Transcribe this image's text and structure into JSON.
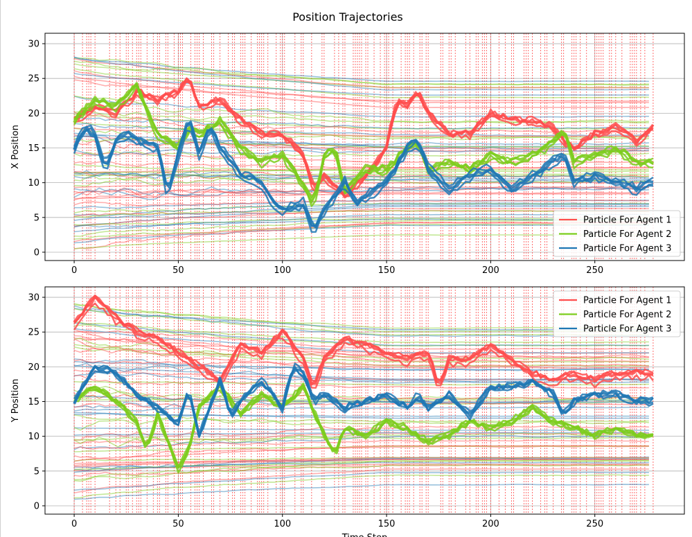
{
  "figure": {
    "title": "Position Trajectories"
  },
  "colors": {
    "agent1": "#ff4d4d",
    "agent2": "#7ccd1d",
    "agent3": "#1f77b4",
    "event_line": "#ff3b3b",
    "grid": "#b0b0b0",
    "axis": "#000000"
  },
  "chart_data": [
    {
      "type": "line",
      "title": "",
      "xlabel": "",
      "ylabel": "X Position",
      "xlim": [
        -14,
        293
      ],
      "ylim": [
        -1.2,
        31.5
      ],
      "xticks": [
        0,
        50,
        100,
        150,
        200,
        250
      ],
      "yticks": [
        0,
        5,
        10,
        15,
        20,
        25,
        30
      ],
      "grid": true,
      "legend_position": "lower right",
      "legend": [
        "Particle For Agent 1",
        "Particle For Agent 2",
        "Particle For Agent 3"
      ],
      "series": [
        {
          "name": "Particle For Agent 1",
          "x": [
            0,
            10,
            20,
            30,
            40,
            50,
            55,
            60,
            70,
            80,
            90,
            100,
            110,
            115,
            120,
            130,
            140,
            150,
            155,
            160,
            165,
            170,
            180,
            190,
            200,
            210,
            220,
            230,
            235,
            240,
            250,
            260,
            270,
            278
          ],
          "values": [
            19,
            21,
            20,
            23,
            22,
            23,
            25,
            21,
            22,
            19,
            17,
            17,
            14,
            9,
            11,
            8,
            11,
            15,
            22,
            21,
            23,
            20,
            17,
            17,
            20,
            19,
            19,
            18,
            16,
            15,
            17,
            18,
            16,
            18
          ]
        },
        {
          "name": "Particle For Agent 2",
          "x": [
            0,
            10,
            20,
            30,
            40,
            50,
            55,
            60,
            70,
            80,
            90,
            100,
            110,
            115,
            120,
            125,
            130,
            140,
            150,
            160,
            165,
            170,
            180,
            190,
            200,
            210,
            220,
            230,
            235,
            240,
            250,
            260,
            270,
            278
          ],
          "values": [
            19,
            22,
            21,
            24,
            17,
            15,
            18,
            17,
            19,
            15,
            13,
            14,
            10,
            7,
            14,
            15,
            9,
            12,
            12,
            15,
            16,
            12,
            13,
            12,
            14,
            13,
            14,
            16,
            18,
            13,
            14,
            15,
            13,
            13
          ]
        },
        {
          "name": "Particle For Agent 3",
          "x": [
            0,
            5,
            10,
            15,
            20,
            25,
            30,
            40,
            45,
            50,
            55,
            60,
            65,
            70,
            80,
            90,
            95,
            100,
            110,
            115,
            120,
            130,
            135,
            140,
            150,
            160,
            165,
            170,
            180,
            190,
            200,
            210,
            220,
            230,
            235,
            240,
            250,
            260,
            270,
            278
          ],
          "values": [
            15,
            18,
            17,
            12,
            16,
            17,
            16,
            15,
            8,
            14,
            19,
            14,
            18,
            15,
            11,
            10,
            7,
            6,
            7,
            3,
            6,
            10,
            7,
            8,
            10,
            15,
            16,
            12,
            9,
            11,
            12,
            9,
            11,
            13,
            14,
            10,
            11,
            10,
            9,
            10
          ]
        }
      ]
    },
    {
      "type": "line",
      "title": "",
      "xlabel": "Time Step",
      "ylabel": "Y Position",
      "xlim": [
        -14,
        293
      ],
      "ylim": [
        -1.2,
        31.5
      ],
      "xticks": [
        0,
        50,
        100,
        150,
        200,
        250
      ],
      "yticks": [
        0,
        5,
        10,
        15,
        20,
        25,
        30
      ],
      "grid": true,
      "legend_position": "upper right",
      "legend": [
        "Particle For Agent 1",
        "Particle For Agent 2",
        "Particle For Agent 3"
      ],
      "series": [
        {
          "name": "Particle For Agent 1",
          "x": [
            0,
            10,
            20,
            30,
            40,
            50,
            60,
            70,
            80,
            90,
            100,
            110,
            115,
            120,
            130,
            140,
            150,
            160,
            170,
            175,
            180,
            190,
            200,
            210,
            220,
            230,
            240,
            250,
            260,
            270,
            278
          ],
          "values": [
            26,
            30,
            27,
            25,
            24,
            22,
            20,
            18,
            23,
            22,
            25,
            21,
            17,
            21,
            24,
            23,
            22,
            21,
            22,
            17,
            21,
            21,
            23,
            21,
            19,
            18,
            19,
            18,
            19,
            19,
            19
          ]
        },
        {
          "name": "Particle For Agent 2",
          "x": [
            0,
            10,
            20,
            30,
            35,
            40,
            45,
            50,
            55,
            60,
            70,
            80,
            90,
            100,
            110,
            120,
            125,
            130,
            140,
            150,
            160,
            170,
            180,
            190,
            200,
            210,
            220,
            230,
            240,
            250,
            260,
            270,
            278
          ],
          "values": [
            15,
            17,
            15,
            12,
            8,
            13,
            9,
            5,
            8,
            14,
            17,
            13,
            16,
            14,
            17,
            10,
            7,
            11,
            10,
            12,
            11,
            9,
            10,
            12,
            11,
            12,
            14,
            12,
            11,
            10,
            11,
            10,
            10
          ]
        },
        {
          "name": "Particle For Agent 3",
          "x": [
            0,
            10,
            20,
            30,
            40,
            50,
            55,
            60,
            70,
            75,
            80,
            90,
            100,
            105,
            110,
            115,
            120,
            130,
            140,
            150,
            160,
            165,
            170,
            180,
            190,
            200,
            210,
            220,
            230,
            235,
            240,
            250,
            260,
            270,
            278
          ],
          "values": [
            15,
            20,
            19,
            16,
            14,
            12,
            17,
            10,
            18,
            13,
            15,
            18,
            14,
            20,
            19,
            15,
            16,
            14,
            15,
            16,
            14,
            16,
            14,
            16,
            13,
            17,
            17,
            18,
            16,
            13,
            15,
            16,
            16,
            15,
            15
          ]
        }
      ]
    }
  ]
}
